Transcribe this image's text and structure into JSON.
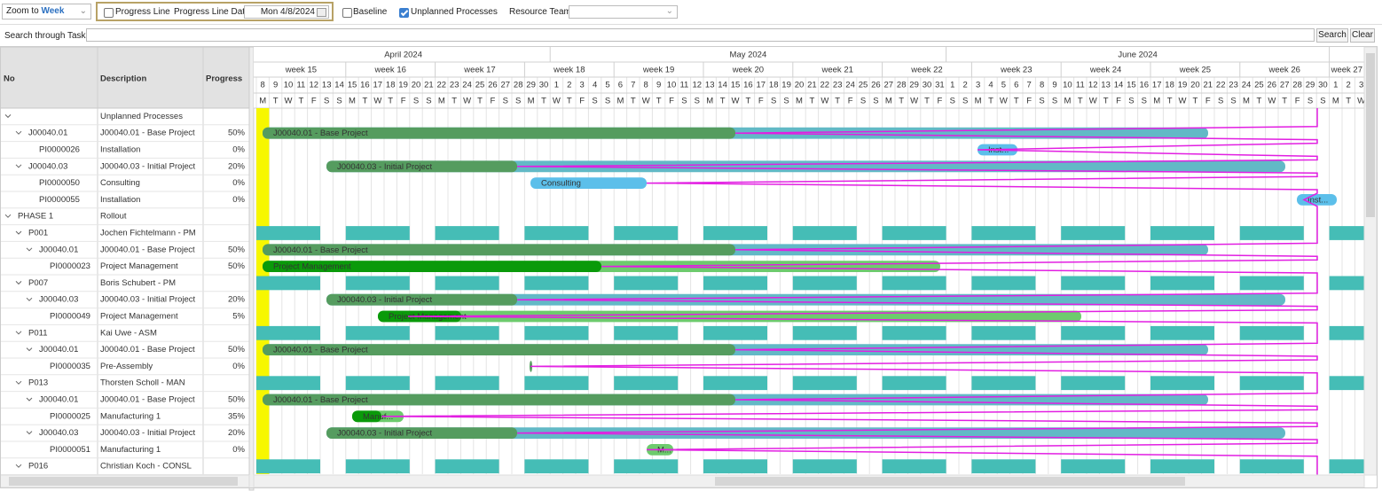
{
  "toolbar": {
    "zoom_label": "Zoom to",
    "zoom_value": "Week",
    "progress_line": "Progress Line",
    "progress_line_date_label": "Progress Line Date",
    "progress_line_date": "Mon 4/8/2024",
    "baseline": "Baseline",
    "unplanned_processes": "Unplanned Processes",
    "resource_team": "Resource Team:"
  },
  "search": {
    "label": "Search through Tasks:",
    "search_button": "Search",
    "clear_button": "Clear"
  },
  "grid": {
    "columns": [
      "No",
      "Description",
      "Progress"
    ],
    "rows": [
      {
        "description": "Unplanned Processes"
      },
      {
        "no": "J00040.01",
        "description": "J00040.01 - Base Project",
        "progress": "50%",
        "bar": "J00040.01 - Base Project"
      },
      {
        "no": "PI0000026",
        "description": "Installation",
        "progress": "0%",
        "bar": "Inst..."
      },
      {
        "no": "J00040.03",
        "description": "J00040.03 - Initial Project",
        "progress": "20%",
        "bar": "J00040.03 - Initial Project"
      },
      {
        "no": "PI0000050",
        "description": "Consulting",
        "progress": "0%",
        "bar": "Consulting"
      },
      {
        "no": "PI0000055",
        "description": "Installation",
        "progress": "0%",
        "bar": "Inst..."
      },
      {
        "no": "PHASE 1",
        "description": "Rollout"
      },
      {
        "no": "P001",
        "description": "Jochen Fichtelmann - PM"
      },
      {
        "no": "J00040.01",
        "description": "J00040.01 - Base Project",
        "progress": "50%",
        "bar": "J00040.01 - Base Project"
      },
      {
        "no": "PI0000023",
        "description": "Project Management",
        "progress": "50%",
        "bar": "Project Management"
      },
      {
        "no": "P007",
        "description": "Boris Schubert - PM"
      },
      {
        "no": "J00040.03",
        "description": "J00040.03 - Initial Project",
        "progress": "20%",
        "bar": "J00040.03 - Initial Project"
      },
      {
        "no": "PI0000049",
        "description": "Project Management",
        "progress": "5%",
        "bar": "Project Management"
      },
      {
        "no": "P011",
        "description": "Kai Uwe - ASM"
      },
      {
        "no": "J00040.01",
        "description": "J00040.01 - Base Project",
        "progress": "50%",
        "bar": "J00040.01 - Base Project"
      },
      {
        "no": "PI0000035",
        "description": "Pre-Assembly",
        "progress": "0%"
      },
      {
        "no": "P013",
        "description": "Thorsten Scholl - MAN"
      },
      {
        "no": "J00040.01",
        "description": "J00040.01 - Base Project",
        "progress": "50%",
        "bar": "J00040.01 - Base Project"
      },
      {
        "no": "PI0000025",
        "description": "Manufacturing 1",
        "progress": "35%",
        "bar": "Manuf..."
      },
      {
        "no": "J00040.03",
        "description": "J00040.03 - Initial Project",
        "progress": "20%",
        "bar": "J00040.03 - Initial Project"
      },
      {
        "no": "PI0000051",
        "description": "Manufacturing 1",
        "progress": "0%",
        "bar": "M..."
      },
      {
        "no": "P016",
        "description": "Christian Koch - CONSL"
      }
    ]
  },
  "timeline": {
    "months": [
      "April 2024",
      "May 2024",
      "June 2024"
    ],
    "weeks": [
      "week 15",
      "week 16",
      "week 17",
      "week 18",
      "week 19",
      "week 20",
      "week 21",
      "week 22",
      "week 23",
      "week 24",
      "week 25",
      "week 26",
      "week 27"
    ],
    "days": [
      8,
      9,
      10,
      11,
      12,
      13,
      14,
      15,
      16,
      17,
      18,
      19,
      20,
      21,
      22,
      23,
      24,
      25,
      26,
      27,
      28,
      29,
      30,
      1,
      2,
      3,
      4,
      5,
      6,
      7,
      8,
      9,
      10,
      11,
      12,
      13,
      14,
      15,
      16,
      17,
      18,
      19,
      20,
      21,
      22,
      23,
      24,
      25,
      26,
      27,
      28,
      29,
      30,
      31,
      1,
      2,
      3,
      4,
      5,
      6,
      7,
      8,
      9,
      10,
      11,
      12,
      13,
      14,
      15,
      16,
      17,
      18,
      19,
      20,
      21,
      22,
      23,
      24,
      25,
      26,
      27,
      28,
      29,
      30,
      1,
      2,
      3
    ],
    "weekdays": [
      "M",
      "T",
      "W",
      "T",
      "F",
      "S",
      "S"
    ]
  }
}
